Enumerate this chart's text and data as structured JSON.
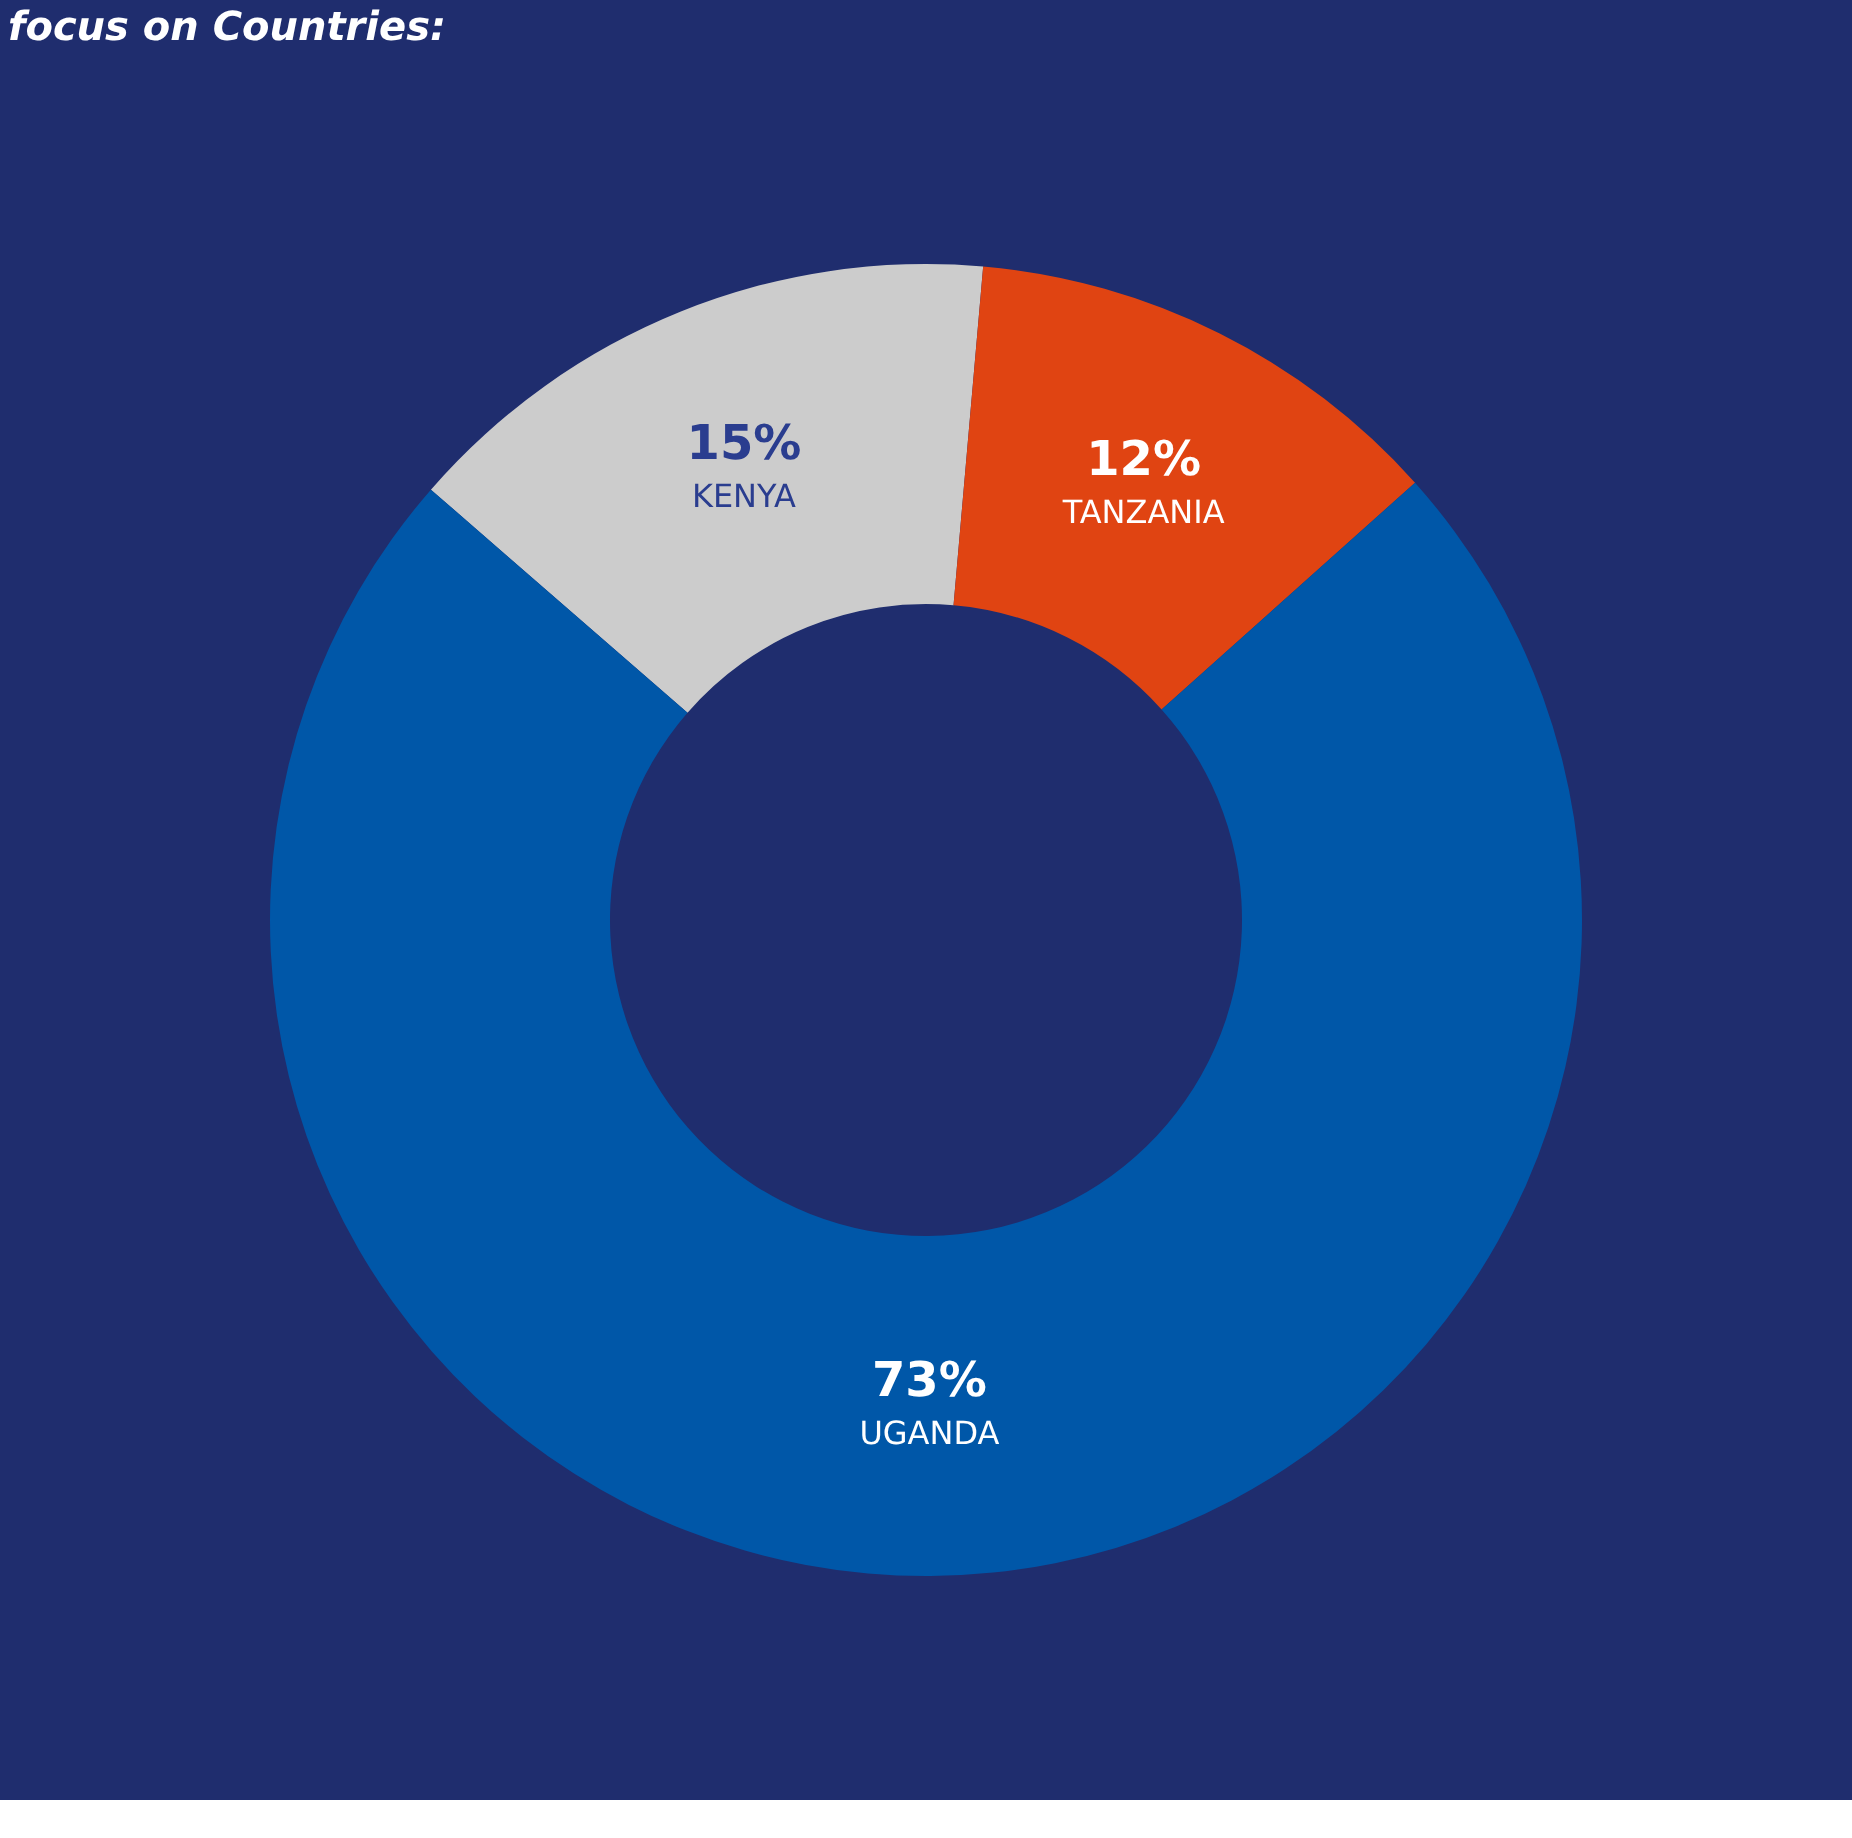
{
  "chart_data": {
    "type": "donut",
    "title": "focus on Countries:",
    "categories": [
      "KENYA",
      "TANZANIA",
      "UGANDA"
    ],
    "values": [
      15,
      12,
      73
    ],
    "value_labels": [
      "15%",
      "12%",
      "73%"
    ],
    "colors": [
      "#cccccc",
      "#e04412",
      "#0057a8"
    ]
  }
}
